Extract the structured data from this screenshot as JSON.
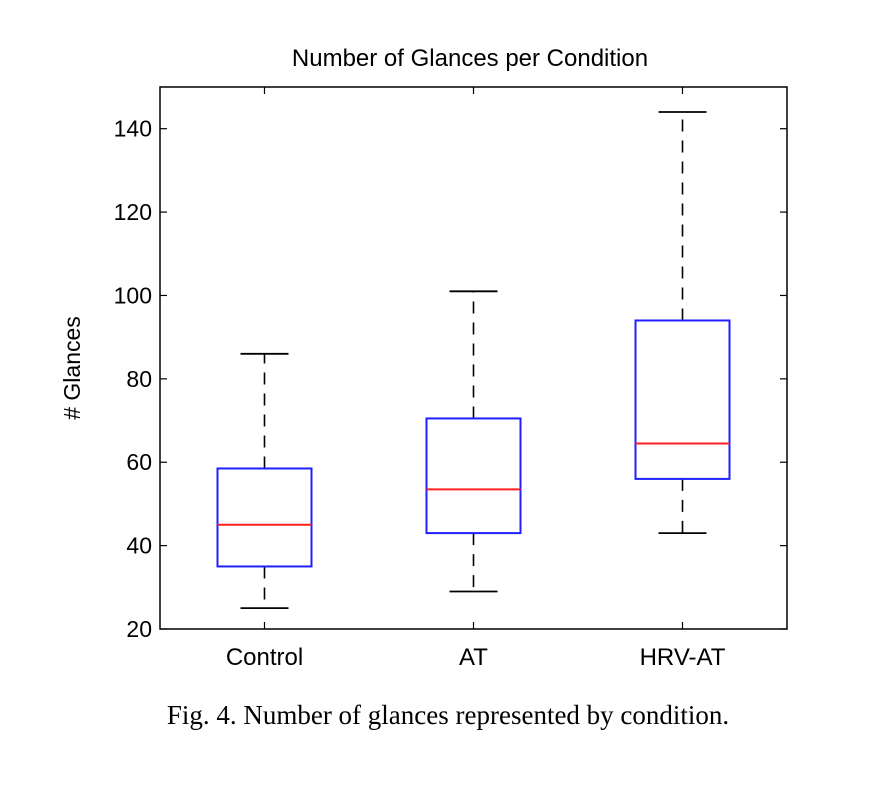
{
  "chart_data": {
    "type": "boxplot",
    "title": "Number of Glances per Condition",
    "xlabel": "",
    "ylabel": "# Glances",
    "ylim": [
      20,
      150
    ],
    "yticks": [
      20,
      40,
      60,
      80,
      100,
      120,
      140
    ],
    "categories": [
      "Control",
      "AT",
      "HRV-AT"
    ],
    "boxes": [
      {
        "label": "Control",
        "whisker_low": 25,
        "q1": 35,
        "median": 45,
        "q3": 58.5,
        "whisker_high": 86
      },
      {
        "label": "AT",
        "whisker_low": 29,
        "q1": 43,
        "median": 53.5,
        "q3": 70.5,
        "whisker_high": 101
      },
      {
        "label": "HRV-AT",
        "whisker_low": 43,
        "q1": 56,
        "median": 64.5,
        "q3": 94,
        "whisker_high": 144
      }
    ],
    "grid": false,
    "colors": {
      "box": "#1f1fff",
      "median": "#ff2020",
      "whisker": "#000000",
      "axis": "#000000"
    }
  },
  "caption": "Fig. 4. Number of glances represented by condition."
}
